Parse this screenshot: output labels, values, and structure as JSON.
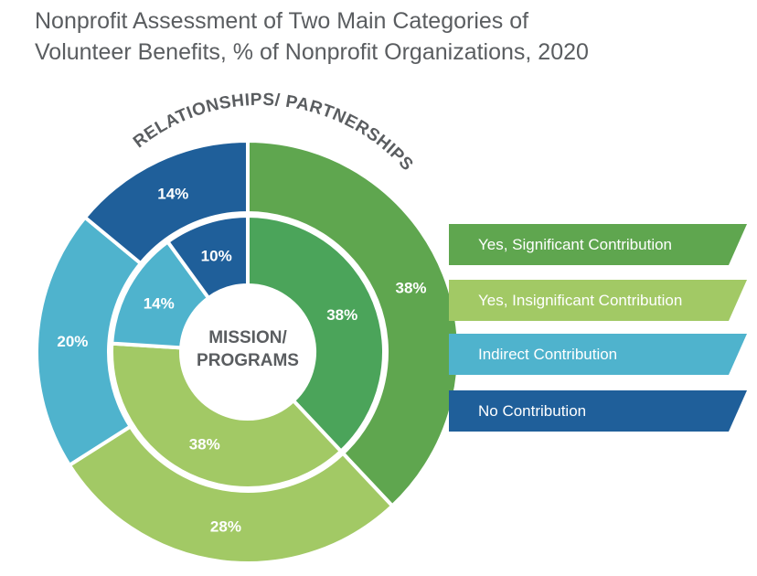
{
  "chart_data": {
    "type": "pie",
    "title": "Nonprofit Assessment of Two Main Categories of Volunteer Benefits, % of Nonprofit Organizations, 2020",
    "title_lines": [
      "Nonprofit Assessment of Two Main Categories of",
      "Volunteer Benefits, % of Nonprofit Organizations, 2020"
    ],
    "categories": [
      "Yes, Significant Contribution",
      "Yes, Insignificant Contribution",
      "Indirect Contribution",
      "No Contribution"
    ],
    "colors": [
      "#5fa64f",
      "#a2c965",
      "#4fb3cd",
      "#1f5f9a"
    ],
    "inner_colors": [
      "#4ba45a",
      "#a2c965",
      "#4fb3cd",
      "#1f5f9a"
    ],
    "series": [
      {
        "name": "MISSION/ PROGRAMS",
        "ring": "inner",
        "values": [
          38,
          38,
          14,
          10
        ]
      },
      {
        "name": "RELATIONSHIPS/ PARTNERSHIPS",
        "ring": "outer",
        "values": [
          38,
          28,
          20,
          14
        ]
      }
    ],
    "center_label_lines": [
      "MISSION/",
      "PROGRAMS"
    ],
    "outer_ring_label": "RELATIONSHIPS/ PARTNERSHIPS",
    "legend_position": "right"
  },
  "legend": {
    "items": [
      {
        "label": "Yes, Significant Contribution",
        "color": "#5fa64f"
      },
      {
        "label": "Yes, Insignificant Contribution",
        "color": "#a2c965"
      },
      {
        "label": "Indirect Contribution",
        "color": "#4fb3cd"
      },
      {
        "label": "No Contribution",
        "color": "#1f5f9a"
      }
    ]
  }
}
